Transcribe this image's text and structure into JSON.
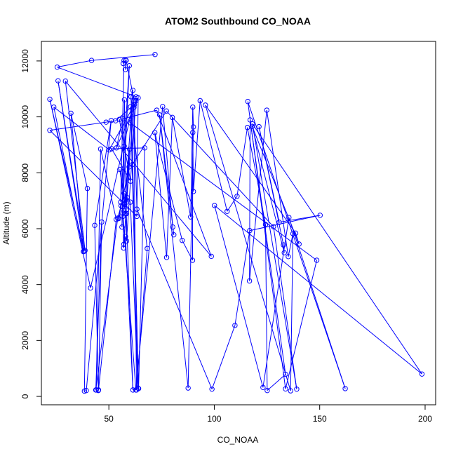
{
  "chart_data": {
    "type": "line",
    "title": "ATOM2 Southbound CO_NOAA",
    "xlabel": "CO_NOAA",
    "ylabel": "Altitude (m)",
    "xlim": [
      18,
      205
    ],
    "ylim": [
      -300,
      12700
    ],
    "xticks": [
      50,
      100,
      150,
      200
    ],
    "yticks": [
      0,
      2000,
      4000,
      6000,
      8000,
      10000,
      12000
    ],
    "series_color": "#0000ff",
    "marker": "open-circle",
    "box": true,
    "grid": false,
    "series": [
      {
        "points": [
          [
            71.9,
            12230
          ],
          [
            41.8,
            12020
          ],
          [
            25.5,
            11780
          ],
          [
            62.9,
            10720
          ],
          [
            58.4,
            5560
          ],
          [
            57.4,
            10610
          ],
          [
            56.2,
            6060
          ],
          [
            59.7,
            11830
          ],
          [
            55.6,
            6950
          ],
          [
            57.2,
            12020
          ],
          [
            56.8,
            11910
          ],
          [
            58.0,
            12020
          ],
          [
            57.8,
            11690
          ],
          [
            58.2,
            12020
          ],
          [
            62.0,
            10590
          ],
          [
            41.3,
            3880
          ],
          [
            22.0,
            10630
          ],
          [
            38.3,
            5190
          ],
          [
            25.9,
            11290
          ],
          [
            38.7,
            5220
          ],
          [
            29.4,
            11280
          ],
          [
            98.6,
            5010
          ],
          [
            72.7,
            10240
          ],
          [
            56.6,
            9930
          ],
          [
            53.6,
            8890
          ],
          [
            63.9,
            10680
          ],
          [
            63.3,
            6440
          ],
          [
            22.0,
            9520
          ],
          [
            48.7,
            9810
          ],
          [
            53.2,
            9860
          ],
          [
            62.1,
            10440
          ],
          [
            50.2,
            8820
          ],
          [
            23.9,
            10350
          ],
          [
            37.9,
            5180
          ],
          [
            32.0,
            10130
          ],
          [
            39.8,
            7440
          ],
          [
            38.4,
            190
          ],
          [
            39.3,
            210
          ],
          [
            51.1,
            9870
          ],
          [
            43.3,
            6120
          ],
          [
            45.0,
            210
          ],
          [
            44.0,
            230
          ],
          [
            46.1,
            8850
          ],
          [
            53.5,
            6330
          ],
          [
            45.1,
            230
          ],
          [
            46.6,
            6240
          ],
          [
            43.8,
            230
          ],
          [
            54.2,
            6380
          ],
          [
            55.8,
            6820
          ],
          [
            57.3,
            7260
          ],
          [
            60.2,
            6950
          ],
          [
            63.8,
            300
          ],
          [
            60.3,
            10360
          ],
          [
            68.2,
            5290
          ],
          [
            63.1,
            230
          ],
          [
            61.8,
            10540
          ],
          [
            57.1,
            5440
          ],
          [
            57.9,
            5720
          ],
          [
            61.4,
            230
          ],
          [
            58.2,
            6670
          ],
          [
            59.8,
            8840
          ],
          [
            57.8,
            7020
          ],
          [
            56.7,
            6440
          ],
          [
            57.0,
            5310
          ],
          [
            58.6,
            7120
          ],
          [
            54.6,
            6360
          ],
          [
            59.6,
            8210
          ],
          [
            57.7,
            6530
          ],
          [
            58.4,
            6540
          ],
          [
            55.2,
            8120
          ],
          [
            57.6,
            6870
          ],
          [
            61.4,
            10950
          ],
          [
            60.5,
            10720
          ],
          [
            64.1,
            280
          ],
          [
            67.0,
            8890
          ],
          [
            51.3,
            8860
          ],
          [
            60.3,
            7700
          ],
          [
            55.0,
            9910
          ],
          [
            57.3,
            8950
          ],
          [
            56.4,
            6790
          ],
          [
            62.8,
            230
          ],
          [
            75.5,
            10370
          ],
          [
            80.3,
            6060
          ],
          [
            80.8,
            5780
          ],
          [
            74.1,
            10070
          ],
          [
            87.6,
            300
          ],
          [
            90.1,
            9640
          ],
          [
            89.8,
            10350
          ],
          [
            88.8,
            6420
          ],
          [
            80.1,
            9980
          ],
          [
            77.4,
            4970
          ],
          [
            71.8,
            9440
          ],
          [
            84.8,
            5580
          ],
          [
            89.7,
            4870
          ],
          [
            89.8,
            9440
          ],
          [
            90.1,
            7330
          ],
          [
            93.3,
            10580
          ],
          [
            106.1,
            6620
          ],
          [
            110.8,
            7160
          ],
          [
            115.7,
            9620
          ],
          [
            124.3,
            6150
          ],
          [
            125.1,
            210
          ],
          [
            133.8,
            790
          ],
          [
            117.0,
            9890
          ],
          [
            116.7,
            4130
          ],
          [
            124.9,
            10240
          ],
          [
            135.1,
            5000
          ],
          [
            137.3,
            5820
          ],
          [
            136.2,
            200
          ],
          [
            95.8,
            10420
          ],
          [
            138.6,
            5840
          ],
          [
            140.2,
            5450
          ],
          [
            118.0,
            9660
          ],
          [
            133.2,
            5140
          ],
          [
            132.8,
            5420
          ],
          [
            121.2,
            9650
          ],
          [
            130.8,
            6230
          ],
          [
            150.2,
            6480
          ],
          [
            116.8,
            5930
          ],
          [
            109.8,
            2540
          ],
          [
            98.9,
            260
          ],
          [
            63.3,
            6700
          ],
          [
            61.9,
            10340
          ],
          [
            62.8,
            10580
          ],
          [
            60.1,
            9790
          ],
          [
            148.6,
            4870
          ],
          [
            133.8,
            270
          ],
          [
            115.9,
            10550
          ],
          [
            162.1,
            280
          ],
          [
            135.4,
            6400
          ],
          [
            123.1,
            320
          ],
          [
            100.1,
            6830
          ],
          [
            198.5,
            800
          ],
          [
            118.1,
            9750
          ],
          [
            139.1,
            260
          ],
          [
            128.1,
            6070
          ],
          [
            77.3,
            10210
          ],
          [
            61.1,
            8290
          ]
        ]
      }
    ]
  }
}
